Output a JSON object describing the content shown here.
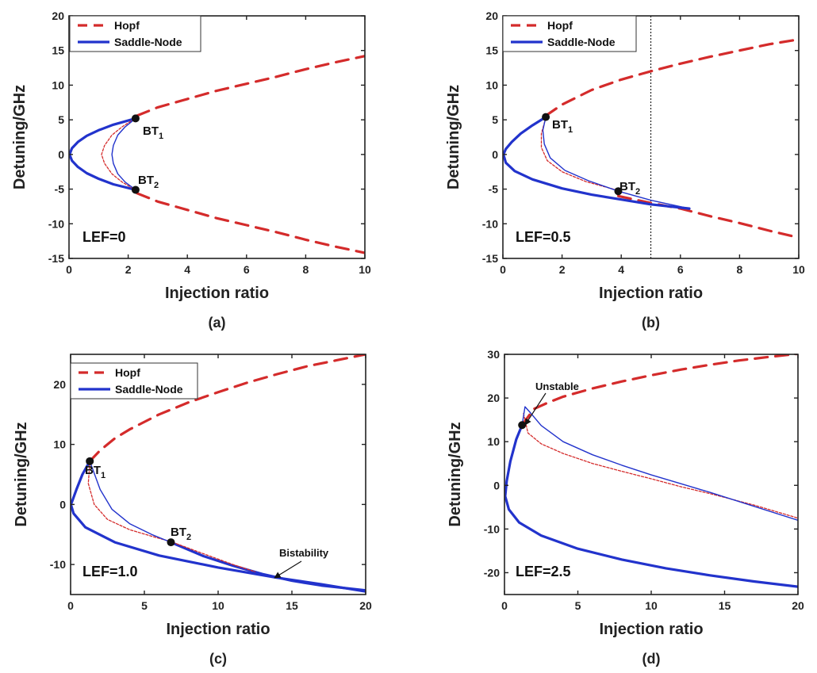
{
  "colors": {
    "hopf": "#d42b2b",
    "saddle": "#2233cc",
    "point": "#111111",
    "axis": "#222222"
  },
  "chart_data": [
    {
      "type": "line",
      "panel_label": "(a)",
      "xlabel": "Injection ratio",
      "ylabel": "Detuning/GHz",
      "xlim": [
        0,
        10
      ],
      "ylim": [
        -15,
        20
      ],
      "xticks": [
        0,
        2,
        4,
        6,
        8,
        10
      ],
      "yticks": [
        -15,
        -10,
        -5,
        0,
        5,
        10,
        15,
        20
      ],
      "legend": {
        "placement": "top-left",
        "entries": [
          "Hopf",
          "Saddle-Node"
        ]
      },
      "annotation": "LEF=0",
      "series": [
        {
          "name": "Hopf",
          "style": "thick-dashed",
          "x": [
            2.3,
            3,
            4,
            5,
            6,
            7,
            8,
            9,
            10
          ],
          "y": [
            5.6,
            6.8,
            8.0,
            9.2,
            10.2,
            11.2,
            12.3,
            13.3,
            14.2
          ]
        },
        {
          "name": "Hopf",
          "style": "thick-dashed",
          "x": [
            2.3,
            3,
            4,
            5,
            6,
            7,
            8,
            9,
            10
          ],
          "y": [
            -5.6,
            -6.8,
            -8.0,
            -9.2,
            -10.2,
            -11.2,
            -12.3,
            -13.3,
            -14.2
          ]
        },
        {
          "name": "Saddle-Node",
          "style": "thick",
          "x": [
            2.25,
            1.5,
            1.0,
            0.6,
            0.3,
            0.1,
            0.02,
            0.1,
            0.3,
            0.6,
            1.0,
            1.5,
            2.25
          ],
          "y": [
            5.2,
            4.3,
            3.5,
            2.7,
            1.8,
            0.9,
            0,
            -0.9,
            -1.8,
            -2.7,
            -3.5,
            -4.3,
            -5.1
          ]
        },
        {
          "name": "Hopf",
          "style": "thin-dashed",
          "x": [
            2.2,
            1.8,
            1.45,
            1.2,
            1.1,
            1.2,
            1.45,
            1.8,
            2.2
          ],
          "y": [
            5.1,
            4.0,
            2.8,
            1.3,
            0,
            -1.3,
            -2.8,
            -4.0,
            -5.0
          ]
        },
        {
          "name": "Saddle-Node",
          "style": "thin",
          "x": [
            2.25,
            1.9,
            1.65,
            1.5,
            1.45,
            1.5,
            1.65,
            1.9,
            2.25
          ],
          "y": [
            5.2,
            4.0,
            2.8,
            1.3,
            0,
            -1.3,
            -2.8,
            -4.0,
            -5.1
          ]
        }
      ],
      "points": [
        {
          "label": "BT",
          "sub": "1",
          "x": 2.25,
          "y": 5.2
        },
        {
          "label": "BT",
          "sub": "2",
          "x": 2.25,
          "y": -5.1
        }
      ]
    },
    {
      "type": "line",
      "panel_label": "(b)",
      "xlabel": "Injection ratio",
      "ylabel": "Detuning/GHz",
      "xlim": [
        0,
        10
      ],
      "ylim": [
        -15,
        20
      ],
      "xticks": [
        0,
        2,
        4,
        6,
        8,
        10
      ],
      "yticks": [
        -15,
        -10,
        -5,
        0,
        5,
        10,
        15,
        20
      ],
      "vline": 5,
      "legend": {
        "placement": "top-left",
        "entries": [
          "Hopf",
          "Saddle-Node"
        ]
      },
      "annotation": "LEF=0.5",
      "series": [
        {
          "name": "Hopf",
          "style": "thick-dashed",
          "x": [
            1.45,
            2,
            3,
            4,
            5,
            6,
            7,
            8,
            9,
            10
          ],
          "y": [
            5.6,
            7.2,
            9.3,
            10.8,
            12.0,
            13.1,
            14.1,
            15.0,
            15.9,
            16.6
          ]
        },
        {
          "name": "Hopf",
          "style": "thick-dashed",
          "x": [
            3.9,
            5,
            6,
            7,
            8,
            9,
            10
          ],
          "y": [
            -6.0,
            -7.0,
            -7.8,
            -8.9,
            -9.9,
            -11.0,
            -12.0
          ]
        },
        {
          "name": "Saddle-Node",
          "style": "thick",
          "x": [
            1.45,
            1.0,
            0.6,
            0.3,
            0.1,
            0.02,
            0.1,
            0.4,
            1.0,
            2.0,
            3.0,
            4.0,
            5.0,
            6.3
          ],
          "y": [
            5.4,
            4.2,
            3.0,
            1.8,
            0.8,
            0,
            -1.2,
            -2.4,
            -3.6,
            -4.9,
            -5.8,
            -6.5,
            -7.2,
            -7.8
          ]
        },
        {
          "name": "Hopf",
          "style": "thin-dashed",
          "x": [
            1.45,
            1.3,
            1.3,
            1.5,
            2.0,
            2.8,
            3.9
          ],
          "y": [
            5.3,
            3.0,
            1.0,
            -0.9,
            -2.5,
            -3.9,
            -5.2
          ]
        },
        {
          "name": "Saddle-Node",
          "style": "thin",
          "x": [
            1.45,
            1.35,
            1.4,
            1.6,
            2.1,
            2.9,
            3.9,
            5.0,
            6.3
          ],
          "y": [
            5.4,
            3.5,
            1.5,
            -0.5,
            -2.3,
            -3.8,
            -5.3,
            -6.6,
            -7.8
          ]
        }
      ],
      "points": [
        {
          "label": "BT",
          "sub": "1",
          "x": 1.45,
          "y": 5.4
        },
        {
          "label": "BT",
          "sub": "2",
          "x": 3.9,
          "y": -5.3
        }
      ]
    },
    {
      "type": "line",
      "panel_label": "(c)",
      "xlabel": "Injection ratio",
      "ylabel": "Detuning/GHz",
      "xlim": [
        0,
        20
      ],
      "ylim": [
        -15,
        25
      ],
      "xticks": [
        0,
        5,
        10,
        15,
        20
      ],
      "yticks": [
        -10,
        0,
        10,
        20
      ],
      "legend": {
        "placement": "top-left",
        "entries": [
          "Hopf",
          "Saddle-Node"
        ]
      },
      "annotation": "LEF=1.0",
      "annotation2": "Bistability",
      "series": [
        {
          "name": "Hopf",
          "style": "thick-dashed",
          "x": [
            1.3,
            2,
            3,
            4,
            6,
            8,
            10,
            12,
            14,
            16,
            18,
            20
          ],
          "y": [
            7.2,
            9.0,
            11.0,
            12.5,
            15.0,
            17.0,
            18.7,
            20.3,
            21.7,
            23.0,
            24.0,
            25.0
          ]
        },
        {
          "name": "Saddle-Node",
          "style": "thick",
          "x": [
            1.3,
            0.8,
            0.4,
            0.1,
            0.02,
            0.2,
            1.0,
            3.0,
            6.0,
            10.0,
            14.0,
            17.0,
            20.0
          ],
          "y": [
            7.2,
            5.0,
            2.5,
            0.5,
            0,
            -1.5,
            -3.8,
            -6.3,
            -8.5,
            -10.5,
            -12.2,
            -13.3,
            -14.5
          ]
        },
        {
          "name": "Saddle-Node",
          "style": "thick",
          "x": [
            6.8,
            9.0,
            11.0,
            13.0,
            15.0,
            17.0,
            20.0
          ],
          "y": [
            -6.3,
            -8.6,
            -10.2,
            -11.6,
            -12.7,
            -13.5,
            -14.3
          ]
        },
        {
          "name": "Hopf",
          "style": "thin-dashed",
          "x": [
            1.3,
            1.2,
            1.6,
            2.5,
            4.0,
            5.5,
            6.8,
            9.0,
            11.0,
            12.5
          ],
          "y": [
            6.8,
            3.5,
            0.0,
            -2.5,
            -4.2,
            -5.3,
            -6.2,
            -8.2,
            -10.0,
            -11.2
          ]
        },
        {
          "name": "Saddle-Node",
          "style": "thin",
          "x": [
            1.3,
            2.0,
            2.8,
            4.0,
            5.5,
            6.8
          ],
          "y": [
            7.2,
            2.5,
            -0.8,
            -3.2,
            -5.0,
            -6.3
          ]
        }
      ],
      "points": [
        {
          "label": "BT",
          "sub": "1",
          "x": 1.3,
          "y": 7.2
        },
        {
          "label": "BT",
          "sub": "2",
          "x": 6.8,
          "y": -6.3
        }
      ]
    },
    {
      "type": "line",
      "panel_label": "(d)",
      "xlabel": "Injection ratio",
      "ylabel": "Detuning/GHz",
      "xlim": [
        0,
        20
      ],
      "ylim": [
        -25,
        30
      ],
      "xticks": [
        0,
        5,
        10,
        15,
        20
      ],
      "yticks": [
        -20,
        -10,
        0,
        10,
        20,
        30
      ],
      "annotation": "LEF=2.5",
      "annotation2": "Unstable",
      "series": [
        {
          "name": "Hopf",
          "style": "thick-dashed",
          "x": [
            1.2,
            2,
            3,
            4,
            6,
            8,
            10,
            12,
            14,
            16,
            18,
            20
          ],
          "y": [
            13.8,
            17.5,
            19.0,
            20.3,
            22.2,
            23.8,
            25.2,
            26.5,
            27.6,
            28.6,
            29.4,
            30.1
          ]
        },
        {
          "name": "Saddle-Node",
          "style": "thick",
          "x": [
            1.2,
            0.8,
            0.4,
            0.15,
            0.05,
            0.3,
            1.0,
            2.5,
            5.0,
            8.0,
            11.0,
            14.0,
            17.0,
            20.0
          ],
          "y": [
            13.8,
            10.5,
            5.5,
            1.0,
            -2.5,
            -5.5,
            -8.5,
            -11.5,
            -14.5,
            -17.0,
            -19.0,
            -20.6,
            -22.0,
            -23.2
          ]
        },
        {
          "name": "Hopf",
          "style": "thin-dashed",
          "x": [
            1.3,
            1.6,
            2.5,
            4.0,
            6.0,
            8.0,
            10.0,
            12.0,
            14.0,
            17.0,
            20.0
          ],
          "y": [
            16.5,
            12.0,
            9.5,
            7.3,
            5.0,
            3.2,
            1.5,
            -0.3,
            -1.9,
            -4.5,
            -7.5
          ]
        },
        {
          "name": "Saddle-Node",
          "style": "thin",
          "x": [
            1.2,
            1.4,
            1.8,
            2.5,
            4.0,
            6.0,
            8.0,
            10.0,
            12.0,
            14.0,
            17.0,
            20.0
          ],
          "y": [
            13.8,
            18.0,
            16.5,
            13.7,
            10.0,
            7.0,
            4.6,
            2.4,
            0.4,
            -1.6,
            -4.8,
            -8.0
          ]
        }
      ],
      "points": [
        {
          "label": "",
          "sub": "",
          "x": 1.2,
          "y": 13.8
        }
      ]
    }
  ]
}
